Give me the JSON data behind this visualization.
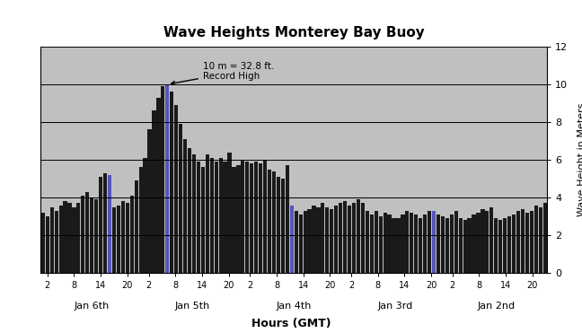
{
  "title": "Wave Heights Monterey Bay Buoy",
  "xlabel": "Hours (GMT)",
  "ylim": [
    0,
    12
  ],
  "background_color": "#c0c0c0",
  "bar_color": "#1a1a1a",
  "highlight_bar_color": "#5555bb",
  "annotation_text": "10 m = 32.8 ft.\nRecord High",
  "yticks": [
    0,
    2,
    4,
    6,
    8,
    10,
    12
  ],
  "date_labels": [
    "Jan 6th",
    "Jan 5th",
    "Jan 4th",
    "Jan 3rd",
    "Jan 2nd"
  ],
  "hour_tick_labels": [
    "2",
    "8",
    "14",
    "20"
  ],
  "wave_heights": [
    3.2,
    3.0,
    3.5,
    3.3,
    3.6,
    3.8,
    3.7,
    3.5,
    3.7,
    4.1,
    4.3,
    4.0,
    3.9,
    5.1,
    5.3,
    5.2,
    3.5,
    3.6,
    3.8,
    3.7,
    4.1,
    4.9,
    5.6,
    6.1,
    7.6,
    8.6,
    9.3,
    9.9,
    10.0,
    9.6,
    8.9,
    7.9,
    7.1,
    6.6,
    6.3,
    5.9,
    5.6,
    6.3,
    6.1,
    5.9,
    6.1,
    5.9,
    6.4,
    5.6,
    5.7,
    6.0,
    5.9,
    5.8,
    5.9,
    5.8,
    6.0,
    5.5,
    5.4,
    5.1,
    5.0,
    5.7,
    3.6,
    3.3,
    3.1,
    3.3,
    3.4,
    3.6,
    3.5,
    3.7,
    3.5,
    3.4,
    3.6,
    3.7,
    3.8,
    3.6,
    3.7,
    3.9,
    3.7,
    3.3,
    3.1,
    3.3,
    3.0,
    3.2,
    3.1,
    2.9,
    2.9,
    3.1,
    3.3,
    3.2,
    3.1,
    2.9,
    3.1,
    3.3,
    3.3,
    3.1,
    3.0,
    2.9,
    3.1,
    3.3,
    2.9,
    2.8,
    2.9,
    3.1,
    3.2,
    3.4,
    3.3,
    3.5,
    2.9,
    2.8,
    2.9,
    3.0,
    3.1,
    3.3,
    3.4,
    3.2,
    3.3,
    3.6,
    3.5,
    3.7
  ],
  "highlight_indices": [
    15,
    28,
    56,
    88
  ],
  "record_bar_index": 28,
  "bars_per_day": 24,
  "num_days": 5
}
